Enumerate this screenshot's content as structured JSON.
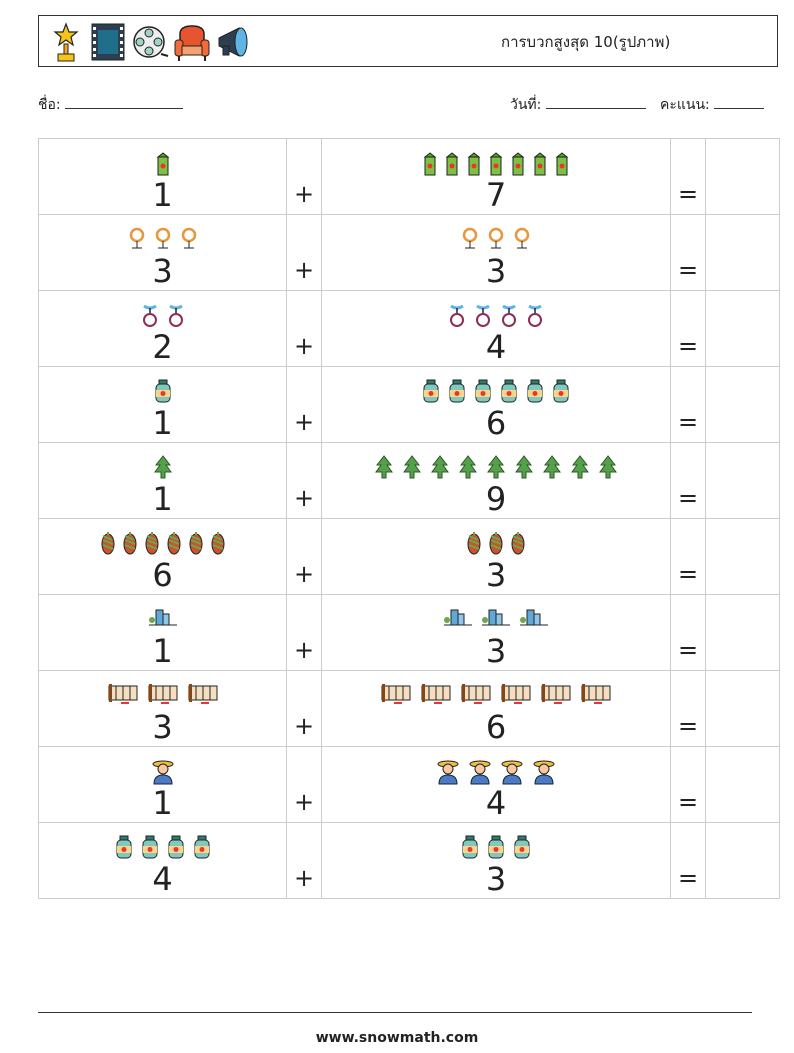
{
  "header": {
    "title": "การบวกสูงสุด 10(รูปภาพ)",
    "icons": [
      "trophy-icon",
      "film-frame-icon",
      "film-reel-icon",
      "armchair-icon",
      "megaphone-icon"
    ]
  },
  "info": {
    "name_label": "ชื่อ:",
    "date_label": "วันที่:",
    "score_label": "คะแนน:"
  },
  "plus_sign": "+",
  "equals_sign": "=",
  "rows": [
    {
      "left": 1,
      "right": 7,
      "icon": "juice-box-icon"
    },
    {
      "left": 3,
      "right": 3,
      "icon": "wreath-stand-icon"
    },
    {
      "left": 2,
      "right": 4,
      "icon": "unicycle-icon"
    },
    {
      "left": 1,
      "right": 6,
      "icon": "jar-icon"
    },
    {
      "left": 1,
      "right": 9,
      "icon": "pine-tree-icon"
    },
    {
      "left": 6,
      "right": 3,
      "icon": "pine-cone-icon"
    },
    {
      "left": 1,
      "right": 3,
      "icon": "city-building-icon"
    },
    {
      "left": 3,
      "right": 6,
      "icon": "fence-icon"
    },
    {
      "left": 1,
      "right": 4,
      "icon": "farmer-icon"
    },
    {
      "left": 4,
      "right": 3,
      "icon": "jar-icon"
    }
  ],
  "footer": "www.snowmath.com"
}
